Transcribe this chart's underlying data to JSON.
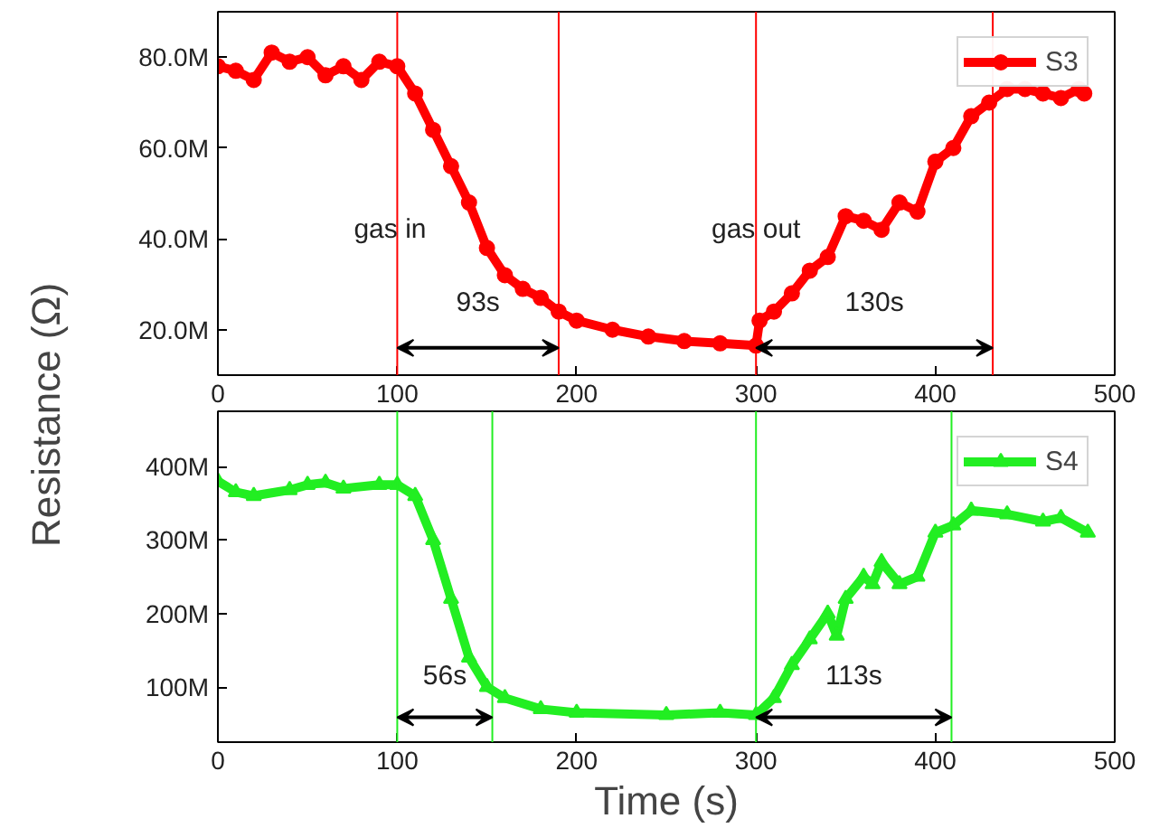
{
  "chart_data": [
    {
      "type": "line",
      "ylabel": "Resistance (Ω)",
      "xlim": [
        0,
        500
      ],
      "xticks": [
        0,
        100,
        200,
        300,
        400,
        500
      ],
      "ylim": [
        10,
        90
      ],
      "yticks": [
        {
          "value": 20,
          "label": "20.0M"
        },
        {
          "value": 40,
          "label": "40.0M"
        },
        {
          "value": 60,
          "label": "60.0M"
        },
        {
          "value": 80,
          "label": "80.0M"
        }
      ],
      "series": [
        {
          "name": "S3",
          "color": "#ff0000",
          "marker": "circle",
          "x": [
            0,
            10,
            20,
            30,
            40,
            50,
            60,
            70,
            80,
            90,
            100,
            110,
            120,
            130,
            140,
            150,
            160,
            170,
            180,
            190,
            200,
            220,
            240,
            260,
            280,
            300,
            302,
            310,
            320,
            330,
            340,
            350,
            360,
            370,
            380,
            390,
            400,
            410,
            420,
            430,
            440,
            450,
            460,
            470,
            480,
            483
          ],
          "values": [
            78,
            77,
            75,
            81,
            79,
            80,
            76,
            78,
            75,
            79,
            78,
            72,
            64,
            56,
            48,
            38,
            32,
            29,
            27,
            24,
            22,
            20,
            18.5,
            17.5,
            17,
            16.5,
            22,
            24,
            28,
            33,
            36,
            45,
            44,
            42,
            48,
            46,
            57,
            60,
            67,
            70,
            73,
            73,
            72,
            71,
            73,
            72
          ]
        }
      ],
      "ref_lines": [
        {
          "axis": "x",
          "value": 100,
          "color": "#ff0000"
        },
        {
          "axis": "x",
          "value": 190,
          "color": "#ff0000"
        },
        {
          "axis": "x",
          "value": 300,
          "color": "#ff0000"
        },
        {
          "axis": "x",
          "value": 432,
          "color": "#ff0000"
        }
      ],
      "annotations": [
        {
          "text": "gas in",
          "x": 96,
          "y": 42
        },
        {
          "text": "gas out",
          "x": 300,
          "y": 42
        },
        "93s",
        "130s"
      ],
      "legend": "top right",
      "grid": false,
      "line_style": "solid"
    },
    {
      "type": "line",
      "xlabel": "Time (s)",
      "xlim": [
        0,
        500
      ],
      "xticks": [
        0,
        100,
        200,
        300,
        400,
        500
      ],
      "ylim": [
        25,
        475
      ],
      "yticks": [
        {
          "value": 100,
          "label": "100M"
        },
        {
          "value": 200,
          "label": "200M"
        },
        {
          "value": 300,
          "label": "300M"
        },
        {
          "value": 400,
          "label": "400M"
        }
      ],
      "series": [
        {
          "name": "S4",
          "color": "#22ee22",
          "marker": "triangle",
          "x": [
            0,
            10,
            20,
            40,
            50,
            60,
            70,
            90,
            100,
            110,
            120,
            130,
            140,
            150,
            160,
            180,
            200,
            250,
            280,
            300,
            310,
            320,
            330,
            340,
            345,
            350,
            360,
            365,
            370,
            380,
            390,
            400,
            410,
            420,
            440,
            460,
            470,
            485
          ],
          "values": [
            380,
            365,
            360,
            368,
            375,
            378,
            370,
            375,
            375,
            360,
            300,
            220,
            140,
            100,
            85,
            70,
            65,
            62,
            65,
            62,
            85,
            130,
            165,
            200,
            170,
            220,
            250,
            240,
            270,
            240,
            250,
            310,
            320,
            340,
            335,
            325,
            330,
            310
          ]
        }
      ],
      "ref_lines": [
        {
          "axis": "x",
          "value": 100,
          "color": "#22ee22"
        },
        {
          "axis": "x",
          "value": 153,
          "color": "#22ee22"
        },
        {
          "axis": "x",
          "value": 300,
          "color": "#22ee22"
        },
        {
          "axis": "x",
          "value": 409,
          "color": "#22ee22"
        }
      ],
      "annotations": [
        "56s",
        "113s"
      ],
      "legend": "top right",
      "grid": false,
      "line_style": "solid"
    }
  ]
}
